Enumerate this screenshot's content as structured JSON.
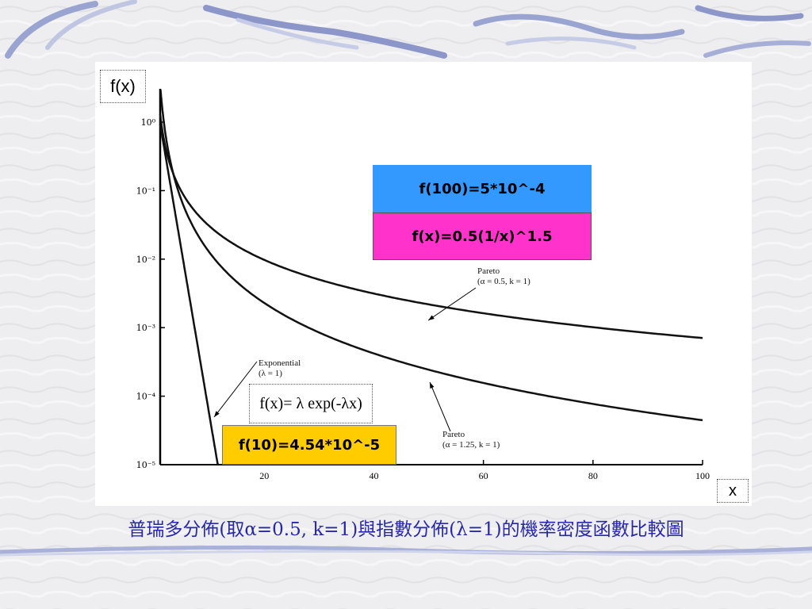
{
  "caption": "普瑞多分佈(取α=0.5, k=1)與指數分佈(λ=1)的機率密度函數比較圖",
  "labels": {
    "ylabel": "f(x)",
    "xlabel": "x"
  },
  "callouts": {
    "blue": "f(100)=5*10^-4",
    "pink": "f(x)=0.5(1/x)^1.5",
    "yellow": "f(10)=4.54*10^-5",
    "formula": "f(x)= λ exp(-λx)"
  },
  "annotations": {
    "pareto1_line1": "Pareto",
    "pareto1_line2": "(α = 0.5, k = 1)",
    "pareto2_line1": "Pareto",
    "pareto2_line2": "(α = 1.25, k = 1)",
    "exp_line1": "Exponential",
    "exp_line2": "(λ = 1)"
  },
  "colors": {
    "callout_blue": "#3399ff",
    "callout_pink": "#ff33cc",
    "callout_yellow": "#ffcc00",
    "caption": "#2828aa"
  },
  "chart_data": {
    "type": "line",
    "yscale": "log",
    "xlim": [
      1,
      100
    ],
    "ylim": [
      1e-05,
      1
    ],
    "x_ticks": [
      20,
      40,
      60,
      80,
      100
    ],
    "y_ticks": [
      "10⁰",
      "10⁻¹",
      "10⁻²",
      "10⁻³",
      "10⁻⁴",
      "10⁻⁵"
    ],
    "series": [
      {
        "name": "Pareto (α = 0.5, k = 1)",
        "alpha": 0.5,
        "k": 1,
        "x": [
          1,
          2,
          5,
          10,
          20,
          40,
          60,
          80,
          100
        ],
        "y": [
          0.5,
          0.177,
          0.0447,
          0.0158,
          0.0056,
          0.00198,
          0.00108,
          0.0007,
          0.0005
        ]
      },
      {
        "name": "Pareto (α = 1.25, k = 1)",
        "alpha": 1.25,
        "k": 1,
        "x": [
          1,
          2,
          5,
          10,
          20,
          40,
          60,
          80,
          100
        ],
        "y": [
          1.25,
          0.263,
          0.0335,
          0.007,
          0.00148,
          0.00031,
          0.000125,
          6.6e-05,
          4e-05
        ]
      },
      {
        "name": "Exponential (λ = 1)",
        "lambda": 1,
        "x": [
          1,
          2,
          4,
          6,
          8,
          10,
          11.5
        ],
        "y": [
          0.368,
          0.135,
          0.0183,
          0.00248,
          0.000335,
          4.54e-05,
          1e-05
        ]
      }
    ]
  }
}
